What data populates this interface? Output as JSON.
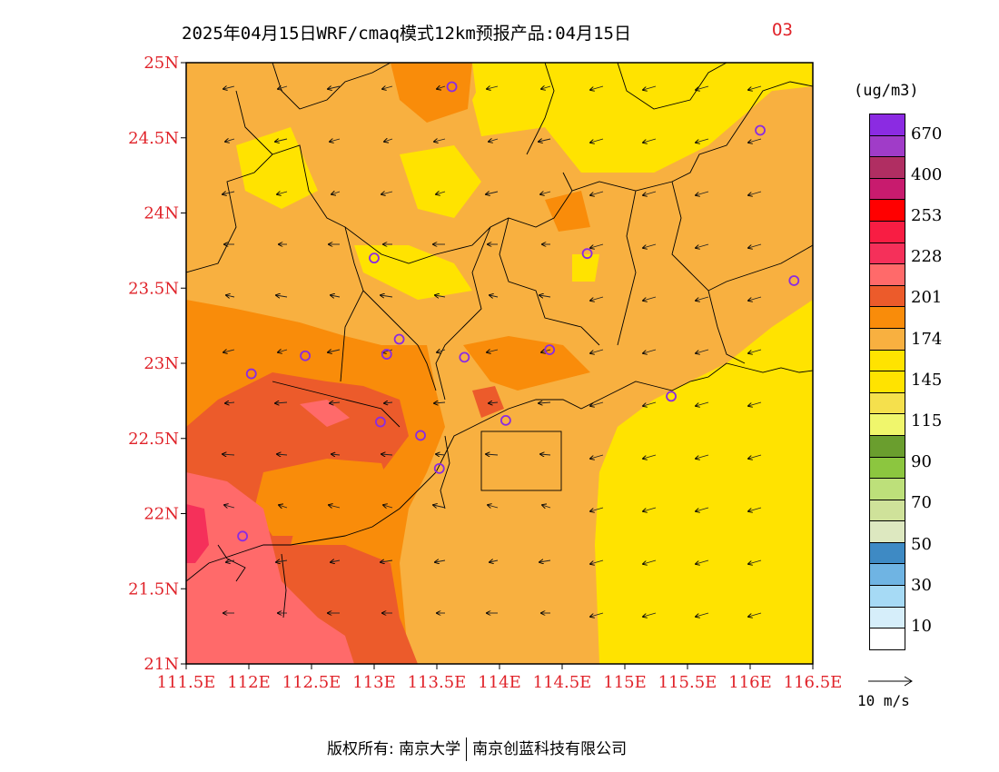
{
  "title": {
    "main": "2025年04月15日WRF/cmaq模式12km预报产品:04月15日",
    "variable": "O3"
  },
  "map": {
    "lat_labels": [
      "25N",
      "24.5N",
      "24N",
      "23.5N",
      "23N",
      "22.5N",
      "22N",
      "21.5N",
      "21N"
    ],
    "lon_labels": [
      "111.5E",
      "112E",
      "112.5E",
      "113E",
      "113.5E",
      "114E",
      "114.5E",
      "115E",
      "115.5E",
      "116E",
      "116.5E"
    ],
    "lat_range": [
      21,
      25
    ],
    "lon_range": [
      111.5,
      116.5
    ],
    "background": "#ffe300",
    "field_colors": {
      "c145": "#ffe300",
      "c174": "#f8b040",
      "c201": "#f98c0a",
      "c228": "#ec5b2b",
      "c253": "#ff6a6a",
      "c400": "#f5305a"
    },
    "station_marker_color": "#8a2be2",
    "stations": [
      {
        "lon": 113.62,
        "lat": 24.84
      },
      {
        "lon": 116.08,
        "lat": 24.55
      },
      {
        "lon": 113.0,
        "lat": 23.7
      },
      {
        "lon": 114.7,
        "lat": 23.73
      },
      {
        "lon": 116.35,
        "lat": 23.55
      },
      {
        "lon": 112.45,
        "lat": 23.05
      },
      {
        "lon": 113.1,
        "lat": 23.06
      },
      {
        "lon": 113.2,
        "lat": 23.16
      },
      {
        "lon": 113.72,
        "lat": 23.04
      },
      {
        "lon": 114.4,
        "lat": 23.09
      },
      {
        "lon": 112.02,
        "lat": 22.93
      },
      {
        "lon": 115.37,
        "lat": 22.78
      },
      {
        "lon": 113.05,
        "lat": 22.61
      },
      {
        "lon": 113.37,
        "lat": 22.52
      },
      {
        "lon": 114.05,
        "lat": 22.62
      },
      {
        "lon": 113.52,
        "lat": 22.3
      },
      {
        "lon": 111.95,
        "lat": 21.85
      }
    ]
  },
  "colorbar": {
    "unit": "(ug/m3)",
    "colors": [
      "#8b2be2",
      "#a03cc8",
      "#b02e62",
      "#c81b6e",
      "#ff0000",
      "#f81d43",
      "#f5305a",
      "#ff6a6a",
      "#ec5b2b",
      "#f98c0a",
      "#f8b040",
      "#ffe300",
      "#ffe300",
      "#f5e04d",
      "#f0f66c",
      "#6a9e2e",
      "#8cc63f",
      "#bde07a",
      "#cfe29a",
      "#dde8c0",
      "#3e8ac4",
      "#6fb4e3",
      "#a6daf5",
      "#d6eefa",
      "#ffffff"
    ],
    "labels": [
      "670",
      "400",
      "253",
      "228",
      "201",
      "174",
      "145",
      "115",
      "90",
      "70",
      "50",
      "30",
      "10"
    ]
  },
  "wind_key": {
    "label": "10 m/s"
  },
  "footer": {
    "left": "版权所有: 南京大学",
    "right": "南京创蓝科技有限公司"
  }
}
